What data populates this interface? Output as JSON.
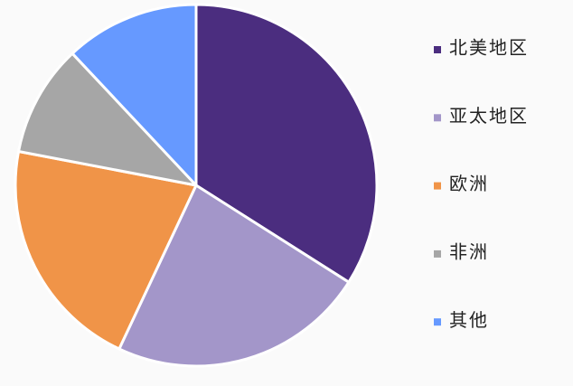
{
  "chart_data": {
    "type": "pie",
    "categories": [
      "北美地区",
      "亚太地区",
      "欧洲",
      "非洲",
      "其他"
    ],
    "values": [
      34,
      23,
      21,
      10,
      12
    ],
    "colors": [
      "#4b2d7f",
      "#a396c9",
      "#f09448",
      "#a6a6a6",
      "#6699ff"
    ],
    "legend": "right"
  }
}
